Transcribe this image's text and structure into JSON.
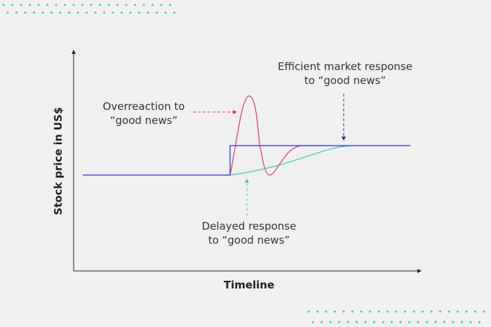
{
  "y_axis_label": "Stock price in US$",
  "x_axis_label": "Timeline",
  "annotations": {
    "efficient": [
      "Efficient market response",
      "to “good news”"
    ],
    "overreaction": [
      "Overreaction to",
      "“good news”"
    ],
    "delayed": [
      "Delayed response",
      "to “good news”"
    ]
  }
}
